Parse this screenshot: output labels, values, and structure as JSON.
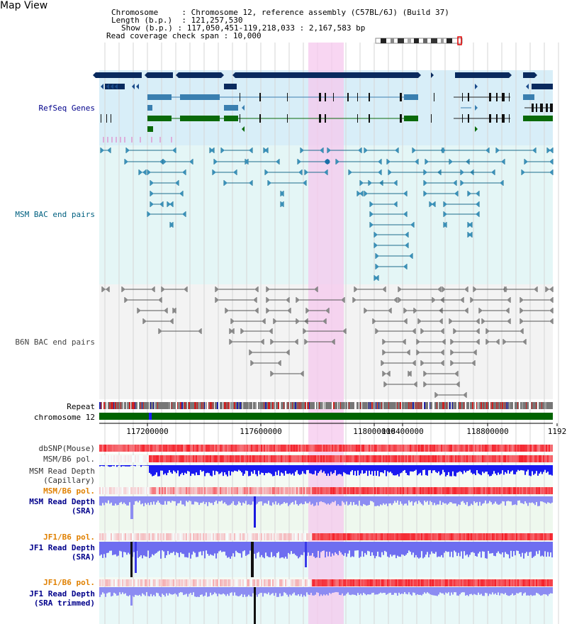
{
  "title": "Map View",
  "header": {
    "chromosome_key": "Chromosome",
    "chromosome_val": "Chromosome 12, reference assembly (C57BL/6J) (Build 37)",
    "length_key": "Length (b.p.)",
    "length_val": "121,257,530",
    "show_key": "Show (b.p.)",
    "show_val": "117,050,451-119,218,033 : 2,167,583 bp",
    "span_key": "Read coverage check span",
    "span_val": "10,000"
  },
  "tracks": {
    "refseq": "RefSeq Genes",
    "msm_bac": "MSM BAC end pairs",
    "b6n_bac": "B6N BAC end pairs",
    "repeat": "Repeat",
    "chromosome": "chromosome 12",
    "dbsnp": "dbSNP(Mouse)",
    "msm_b6_pol_1": "MSM/B6 pol.",
    "msm_depth_cap_1": "MSM Read Depth",
    "msm_depth_cap_2": "(Capillary)",
    "msm_b6_pol_2": "MSM/B6 pol.",
    "msm_depth_sra_1": "MSM Read Depth",
    "msm_depth_sra_2": "(SRA)",
    "jf1_b6_pol_1": "JF1/B6 pol.",
    "jf1_depth_sra_1": "JF1 Read Depth",
    "jf1_depth_sra_2": "(SRA)",
    "jf1_b6_pol_2": "JF1/B6 pol.",
    "jf1_depth_trim_1": "JF1 Read Depth",
    "jf1_depth_trim_2": "(SRA trimmed)"
  },
  "axis": {
    "ticks": [
      "117200000",
      "117600000",
      "118000000",
      "118400000",
      "118800000",
      "1192"
    ]
  },
  "colors": {
    "refseq_label": "#00008b",
    "msm_label": "#006080",
    "b6n_label": "#444444",
    "pol_orange": "#e08000",
    "depth_blue": "#00008b",
    "highlight": "#f6d4f0"
  }
}
